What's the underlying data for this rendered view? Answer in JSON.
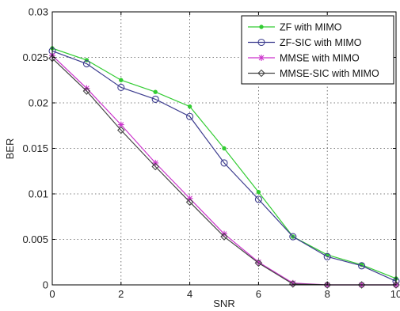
{
  "chart_data": {
    "type": "line",
    "title": "",
    "xlabel": "SNR",
    "ylabel": "BER",
    "xlim": [
      0,
      10
    ],
    "ylim": [
      0,
      0.03
    ],
    "xticks": [
      0,
      2,
      4,
      6,
      8,
      10
    ],
    "xtick_labels": [
      "0",
      "2",
      "4",
      "6",
      "8",
      "10"
    ],
    "yticks": [
      0,
      0.005,
      0.01,
      0.015,
      0.02,
      0.025,
      0.03
    ],
    "ytick_labels": [
      "0",
      "0.005",
      "0.01",
      "0.015",
      "0.02",
      "0.025",
      "0.03"
    ],
    "grid": true,
    "legend_position": "top-right",
    "x": [
      0,
      1,
      2,
      3,
      4,
      5,
      6,
      7,
      8,
      9,
      10
    ],
    "series": [
      {
        "name": "ZF with MIMO",
        "color": "#33cc33",
        "marker": "dot",
        "values": [
          0.026,
          0.0247,
          0.0225,
          0.0212,
          0.0196,
          0.015,
          0.0102,
          0.0053,
          0.0033,
          0.0022,
          0.0007
        ]
      },
      {
        "name": "ZF-SIC with MIMO",
        "color": "#3d3d8f",
        "marker": "circle",
        "values": [
          0.0257,
          0.0243,
          0.0217,
          0.0204,
          0.0185,
          0.0134,
          0.0094,
          0.0053,
          0.0031,
          0.0021,
          0.0004
        ]
      },
      {
        "name": "MMSE with MIMO",
        "color": "#cc33cc",
        "marker": "star",
        "values": [
          0.0252,
          0.0216,
          0.0176,
          0.0134,
          0.0095,
          0.0056,
          0.0025,
          0.0002,
          0.0,
          0.0,
          0.0
        ]
      },
      {
        "name": "MMSE-SIC with MIMO",
        "color": "#444444",
        "marker": "diamond",
        "values": [
          0.0249,
          0.0213,
          0.017,
          0.013,
          0.0091,
          0.0053,
          0.0024,
          0.0001,
          0.0,
          0.0,
          0.0
        ]
      }
    ]
  }
}
